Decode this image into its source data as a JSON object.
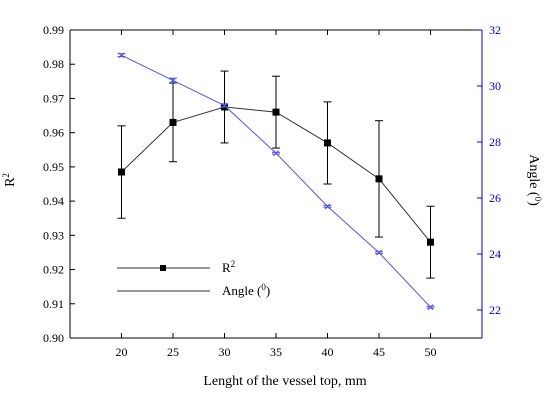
{
  "chart_data": {
    "type": "line",
    "x": [
      20,
      25,
      30,
      35,
      40,
      45,
      50
    ],
    "xlabel": "Lenght of the vessel top, mm",
    "xlim": [
      15,
      55
    ],
    "xticks": [
      20,
      25,
      30,
      35,
      40,
      45,
      50
    ],
    "left_axis": {
      "label_base": "R",
      "label_sup": "2",
      "ylim": [
        0.9,
        0.99
      ],
      "ticks": [
        "0.90",
        "0.91",
        "0.92",
        "0.93",
        "0.94",
        "0.95",
        "0.96",
        "0.97",
        "0.98",
        "0.99"
      ]
    },
    "right_axis": {
      "label_base": "Angle (",
      "label_sup": "0",
      "label_end": ")",
      "ylim": [
        21,
        32
      ],
      "ticks": [
        "22",
        "24",
        "26",
        "28",
        "30",
        "32"
      ],
      "color": "#0000cc"
    },
    "series": [
      {
        "name": "R",
        "name_sup": "2",
        "axis": "left",
        "color": "#333333",
        "marker": "square",
        "values": [
          0.9485,
          0.963,
          0.9675,
          0.966,
          0.957,
          0.9465,
          0.928
        ],
        "err": [
          0.0135,
          0.0115,
          0.0105,
          0.0105,
          0.012,
          0.017,
          0.0105
        ]
      },
      {
        "name": "Angle (",
        "name_sup": "0",
        "name_end": ")",
        "axis": "right",
        "color": "#5555dd",
        "marker": "cross",
        "values": [
          31.1,
          30.2,
          29.3,
          27.6,
          25.7,
          24.05,
          22.1
        ],
        "err": [
          0.05,
          0.08,
          0.05,
          0.03,
          0.03,
          0.03,
          0.03
        ]
      }
    ],
    "legend": "bottom-left",
    "grid": false
  }
}
